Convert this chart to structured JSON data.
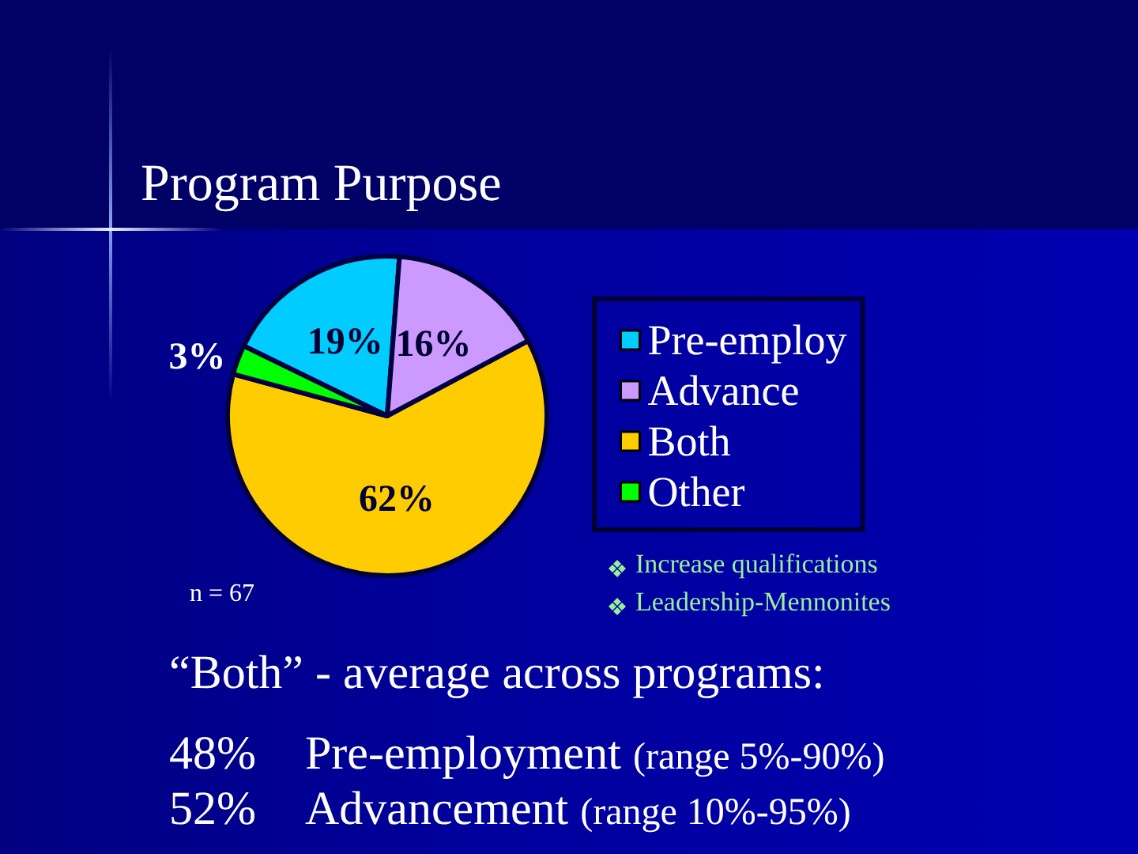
{
  "chart_data": {
    "type": "pie",
    "title": "Program Purpose",
    "categories": [
      "Pre-employ",
      "Advance",
      "Both",
      "Other"
    ],
    "values": [
      19,
      16,
      62,
      3
    ],
    "colors": [
      "#00ccff",
      "#cc99ff",
      "#ffcc00",
      "#00ff00"
    ],
    "value_labels": [
      "19%",
      "16%",
      "62%",
      "3%"
    ],
    "legend": "right",
    "annotations": [
      "n = 67",
      "Increase qualifications",
      "Leadership-Mennonites",
      "“Both” - average across programs:",
      "48% Pre-employment (range 5%-90%)",
      "52% Advancement (range 10%-95%)"
    ]
  }
}
